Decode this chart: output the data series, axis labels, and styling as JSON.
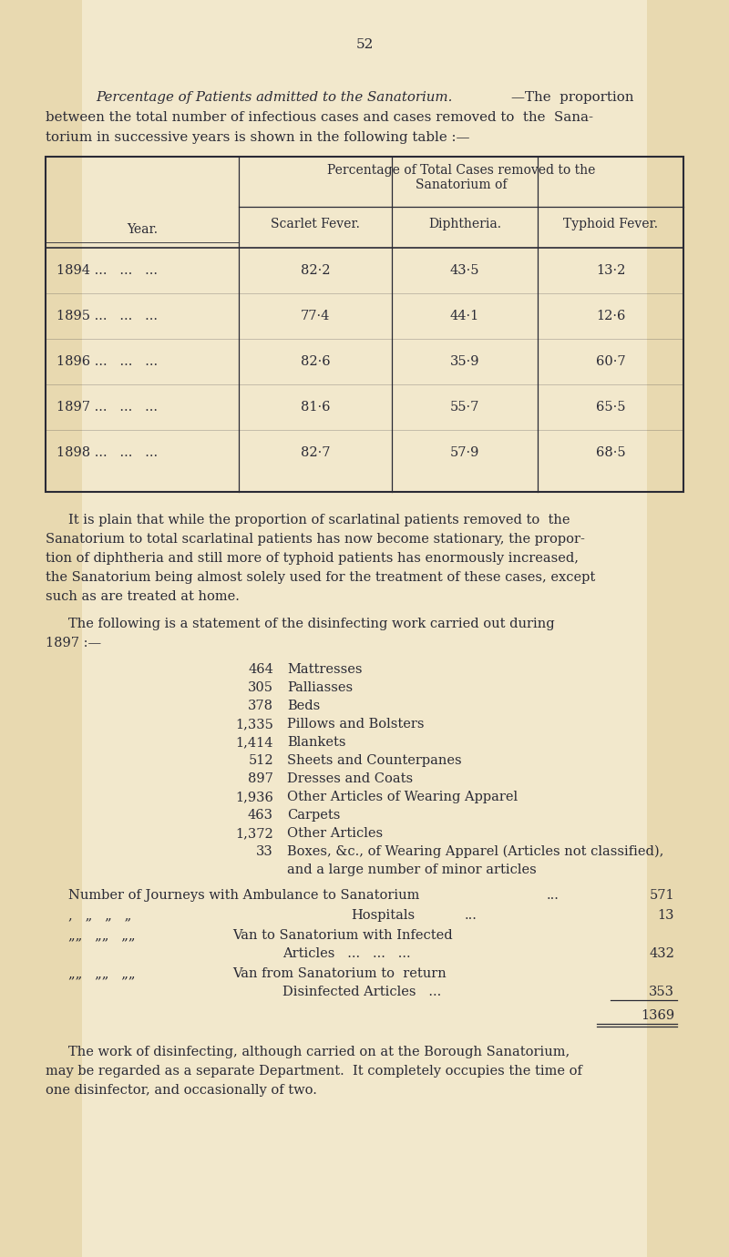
{
  "outer_bg": "#e8d9b0",
  "page_bg": "#f2e8cc",
  "text_color": "#2a2a35",
  "page_number": "52",
  "table_data": [
    [
      "1894 ...   ...   ...",
      "82·2",
      "43·5",
      "13·2"
    ],
    [
      "1895 ...   ...   ...",
      "77·4",
      "44·1",
      "12·6"
    ],
    [
      "1896 ...   ...   ...",
      "82·6",
      "35·9",
      "60·7"
    ],
    [
      "1897 ...   ...   ...",
      "81·6",
      "55·7",
      "65·5"
    ],
    [
      "1898 ...   ...   ...",
      "82·7",
      "57·9",
      "68·5"
    ]
  ]
}
